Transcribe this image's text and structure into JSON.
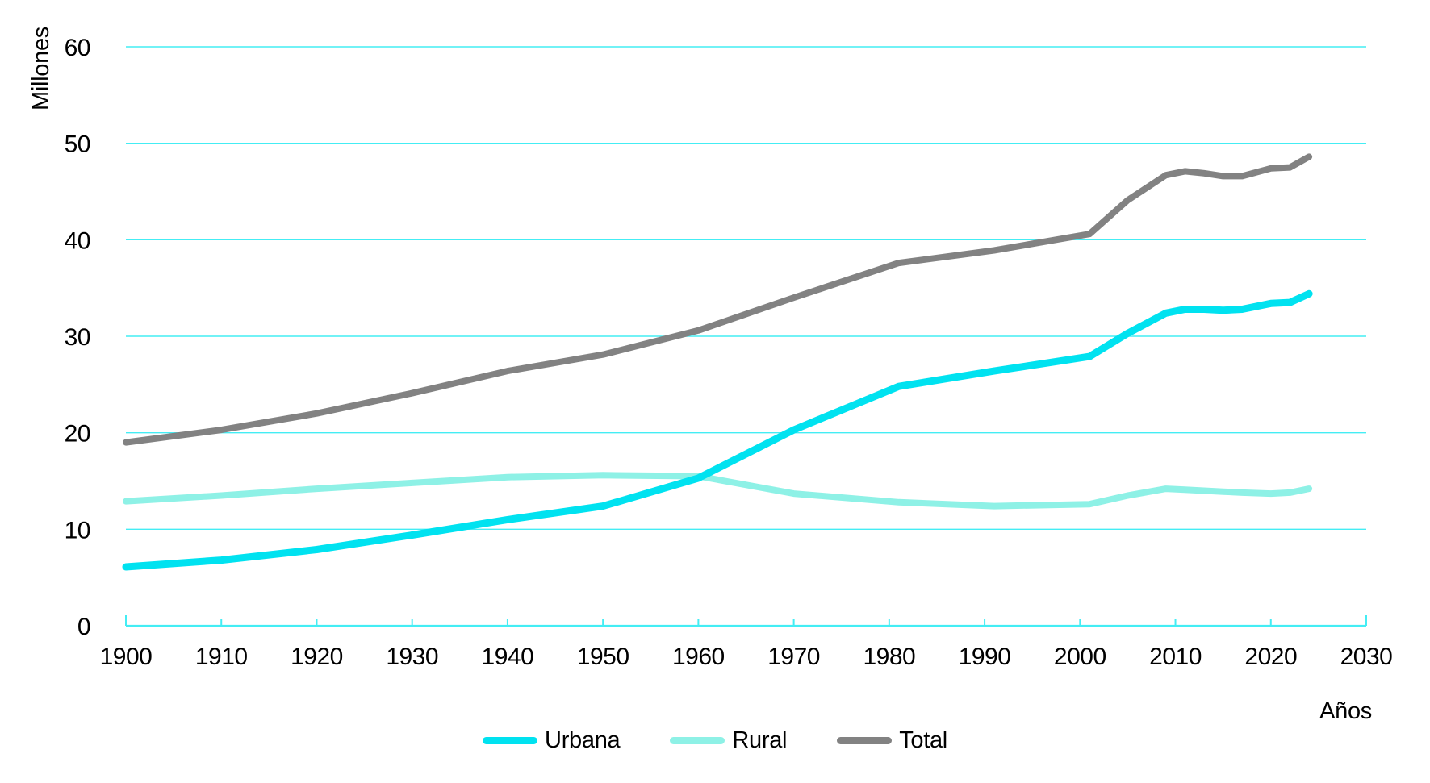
{
  "chart_data": {
    "type": "line",
    "title": "",
    "ylabel": "Millones",
    "xlabel": "Años",
    "xlim": [
      1900,
      2030
    ],
    "ylim": [
      0,
      60
    ],
    "x_ticks": [
      1900,
      1910,
      1920,
      1930,
      1940,
      1950,
      1960,
      1970,
      1980,
      1990,
      2000,
      2010,
      2020,
      2030
    ],
    "y_ticks": [
      0,
      10,
      20,
      30,
      40,
      50,
      60
    ],
    "grid": "horizontal",
    "legend_position": "bottom",
    "series": [
      {
        "name": "Urbana",
        "color": "#00e2f0",
        "points": [
          [
            1900,
            6.1
          ],
          [
            1910,
            6.8
          ],
          [
            1920,
            7.9
          ],
          [
            1930,
            9.4
          ],
          [
            1940,
            11.0
          ],
          [
            1950,
            12.4
          ],
          [
            1960,
            15.3
          ],
          [
            1970,
            20.3
          ],
          [
            1981,
            24.8
          ],
          [
            1991,
            26.4
          ],
          [
            2001,
            27.9
          ],
          [
            2005,
            30.3
          ],
          [
            2009,
            32.4
          ],
          [
            2011,
            32.8
          ],
          [
            2013,
            32.8
          ],
          [
            2015,
            32.7
          ],
          [
            2017,
            32.8
          ],
          [
            2020,
            33.4
          ],
          [
            2022,
            33.5
          ],
          [
            2024,
            34.4
          ]
        ]
      },
      {
        "name": "Rural",
        "color": "#8ef1e6",
        "points": [
          [
            1900,
            12.9
          ],
          [
            1910,
            13.5
          ],
          [
            1920,
            14.2
          ],
          [
            1930,
            14.8
          ],
          [
            1940,
            15.4
          ],
          [
            1950,
            15.6
          ],
          [
            1960,
            15.5
          ],
          [
            1970,
            13.7
          ],
          [
            1981,
            12.8
          ],
          [
            1991,
            12.4
          ],
          [
            2001,
            12.6
          ],
          [
            2005,
            13.5
          ],
          [
            2009,
            14.2
          ],
          [
            2011,
            14.1
          ],
          [
            2013,
            14.0
          ],
          [
            2015,
            13.9
          ],
          [
            2017,
            13.8
          ],
          [
            2020,
            13.7
          ],
          [
            2022,
            13.8
          ],
          [
            2024,
            14.2
          ]
        ]
      },
      {
        "name": "Total",
        "color": "#828282",
        "points": [
          [
            1900,
            19.0
          ],
          [
            1910,
            20.3
          ],
          [
            1920,
            22.0
          ],
          [
            1930,
            24.1
          ],
          [
            1940,
            26.4
          ],
          [
            1950,
            28.1
          ],
          [
            1960,
            30.6
          ],
          [
            1970,
            34.0
          ],
          [
            1981,
            37.6
          ],
          [
            1991,
            38.9
          ],
          [
            2001,
            40.6
          ],
          [
            2005,
            44.1
          ],
          [
            2009,
            46.7
          ],
          [
            2011,
            47.1
          ],
          [
            2013,
            46.9
          ],
          [
            2015,
            46.6
          ],
          [
            2017,
            46.6
          ],
          [
            2020,
            47.4
          ],
          [
            2022,
            47.5
          ],
          [
            2024,
            48.6
          ]
        ]
      }
    ]
  },
  "colors": {
    "grid": "#44edf4",
    "axis": "#44edf4",
    "text": "#000000",
    "background": "#ffffff"
  }
}
